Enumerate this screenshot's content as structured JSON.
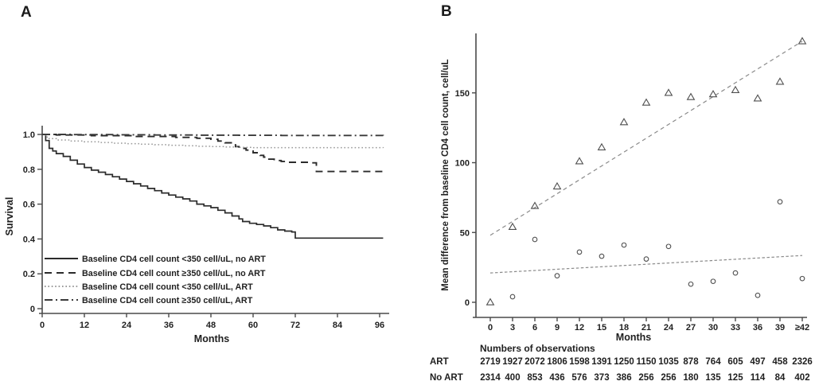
{
  "panels": {
    "a": {
      "letter": "A"
    },
    "b": {
      "letter": "B"
    }
  },
  "colors": {
    "curve_black": "#2b2b2b",
    "curve_dashdot": "#3a3a3a",
    "curve_dotted_gray": "#999999",
    "axis": "#4a4a4a",
    "marker": "#4f4f4f",
    "trend": "#8a8a8a",
    "text": "#1f1f1f",
    "background": "#ffffff"
  },
  "chart_data": [
    {
      "type": "line",
      "subtype": "kaplan-meier-survival",
      "panel": "A",
      "xlabel": "Months",
      "ylabel": "Survival",
      "xticks": [
        0,
        12,
        24,
        36,
        48,
        60,
        72,
        84,
        96
      ],
      "ytick_labels": [
        "0",
        "0.2",
        "0.4",
        "0.6",
        "0.8",
        "1.0"
      ],
      "ytick_values": [
        0,
        0.2,
        0.4,
        0.6,
        0.8,
        1.0
      ],
      "xlim": [
        0,
        98
      ],
      "ylim": [
        0,
        1.02
      ],
      "grid": false,
      "legend_position": "lower-left",
      "series": [
        {
          "name": "Baseline CD4 cell count <350 cell/uL, no ART",
          "style": "solid",
          "points": [
            [
              0,
              1.0
            ],
            [
              1,
              0.965
            ],
            [
              2,
              0.92
            ],
            [
              3,
              0.905
            ],
            [
              4,
              0.89
            ],
            [
              6,
              0.874
            ],
            [
              8,
              0.852
            ],
            [
              10,
              0.83
            ],
            [
              12,
              0.81
            ],
            [
              14,
              0.795
            ],
            [
              16,
              0.783
            ],
            [
              18,
              0.77
            ],
            [
              20,
              0.757
            ],
            [
              22,
              0.744
            ],
            [
              24,
              0.73
            ],
            [
              26,
              0.717
            ],
            [
              28,
              0.704
            ],
            [
              30,
              0.69
            ],
            [
              32,
              0.677
            ],
            [
              34,
              0.664
            ],
            [
              36,
              0.652
            ],
            [
              38,
              0.64
            ],
            [
              40,
              0.63
            ],
            [
              42,
              0.618
            ],
            [
              44,
              0.6
            ],
            [
              46,
              0.59
            ],
            [
              48,
              0.58
            ],
            [
              50,
              0.565
            ],
            [
              52,
              0.55
            ],
            [
              54,
              0.532
            ],
            [
              56,
              0.515
            ],
            [
              57,
              0.5
            ],
            [
              59,
              0.49
            ],
            [
              61,
              0.483
            ],
            [
              63,
              0.475
            ],
            [
              65,
              0.465
            ],
            [
              67,
              0.452
            ],
            [
              69,
              0.445
            ],
            [
              71,
              0.44
            ],
            [
              72,
              0.405
            ],
            [
              97,
              0.405
            ]
          ]
        },
        {
          "name": "Baseline CD4 cell count ≥350 cell/uL, no ART",
          "style": "dashed",
          "points": [
            [
              0,
              1.0
            ],
            [
              4,
              0.997
            ],
            [
              14,
              0.993
            ],
            [
              26,
              0.988
            ],
            [
              38,
              0.983
            ],
            [
              44,
              0.978
            ],
            [
              48,
              0.972
            ],
            [
              50,
              0.962
            ],
            [
              52,
              0.952
            ],
            [
              54,
              0.94
            ],
            [
              55,
              0.93
            ],
            [
              56,
              0.92
            ],
            [
              58,
              0.91
            ],
            [
              59,
              0.905
            ],
            [
              60,
              0.895
            ],
            [
              62,
              0.88
            ],
            [
              63,
              0.87
            ],
            [
              64,
              0.858
            ],
            [
              66,
              0.85
            ],
            [
              68,
              0.845
            ],
            [
              70,
              0.84
            ],
            [
              76,
              0.837
            ],
            [
              78,
              0.787
            ],
            [
              97,
              0.785
            ]
          ]
        },
        {
          "name": "Baseline CD4 cell count <350 cell/uL,  ART",
          "style": "dotted",
          "points": [
            [
              0,
              1.0
            ],
            [
              1,
              0.985
            ],
            [
              2,
              0.976
            ],
            [
              4,
              0.968
            ],
            [
              8,
              0.962
            ],
            [
              12,
              0.958
            ],
            [
              16,
              0.954
            ],
            [
              20,
              0.95
            ],
            [
              24,
              0.947
            ],
            [
              28,
              0.944
            ],
            [
              32,
              0.941
            ],
            [
              36,
              0.938
            ],
            [
              40,
              0.935
            ],
            [
              44,
              0.932
            ],
            [
              48,
              0.93
            ],
            [
              52,
              0.928
            ],
            [
              56,
              0.926
            ],
            [
              60,
              0.924
            ],
            [
              97,
              0.923
            ]
          ]
        },
        {
          "name": "Baseline CD4 cell count ≥350 cell/uL, ART",
          "style": "dashdot",
          "points": [
            [
              0,
              1.0
            ],
            [
              8,
              0.999
            ],
            [
              20,
              0.998
            ],
            [
              32,
              0.997
            ],
            [
              44,
              0.996
            ],
            [
              56,
              0.995
            ],
            [
              68,
              0.994
            ],
            [
              97,
              0.993
            ]
          ]
        }
      ]
    },
    {
      "type": "scatter",
      "panel": "B",
      "xlabel": "Months",
      "ylabel": "Mean difference from baseline CD4 cell count, cell/uL",
      "categories": [
        "0",
        "3",
        "6",
        "9",
        "12",
        "15",
        "18",
        "21",
        "24",
        "27",
        "30",
        "33",
        "36",
        "39",
        "≥42"
      ],
      "ytick_labels": [
        "0",
        "50",
        "100",
        "150"
      ],
      "ytick_values": [
        0,
        50,
        100,
        150
      ],
      "ylim": [
        -8,
        193
      ],
      "grid": false,
      "series": [
        {
          "name": "ART",
          "marker": "triangle",
          "values": [
            0,
            54,
            69,
            83,
            101,
            111,
            129,
            143,
            150,
            147,
            149,
            152,
            146,
            158,
            187
          ]
        },
        {
          "name": "No ART",
          "marker": "circle",
          "values": [
            null,
            4,
            45,
            19,
            36,
            33,
            41,
            31,
            40,
            13,
            15,
            21,
            5,
            72,
            17
          ]
        }
      ],
      "trendlines": [
        {
          "name": "ART trend",
          "style": "dashed",
          "start": [
            0,
            48
          ],
          "end": [
            14,
            187
          ]
        },
        {
          "name": "No ART trend",
          "style": "dashed",
          "start": [
            0,
            21
          ],
          "end": [
            14,
            33.5
          ]
        }
      ],
      "observations": {
        "title": "Numbers of observations",
        "rows": [
          {
            "label": "ART",
            "values": [
              "2719",
              "1927",
              "2072",
              "1806",
              "1598",
              "1391",
              "1250",
              "1150",
              "1035",
              "878",
              "764",
              "605",
              "497",
              "458",
              "2326"
            ]
          },
          {
            "label": "No ART",
            "values": [
              "2314",
              "400",
              "853",
              "436",
              "576",
              "373",
              "386",
              "256",
              "256",
              "180",
              "135",
              "125",
              "114",
              "84",
              "402"
            ]
          }
        ]
      }
    }
  ]
}
